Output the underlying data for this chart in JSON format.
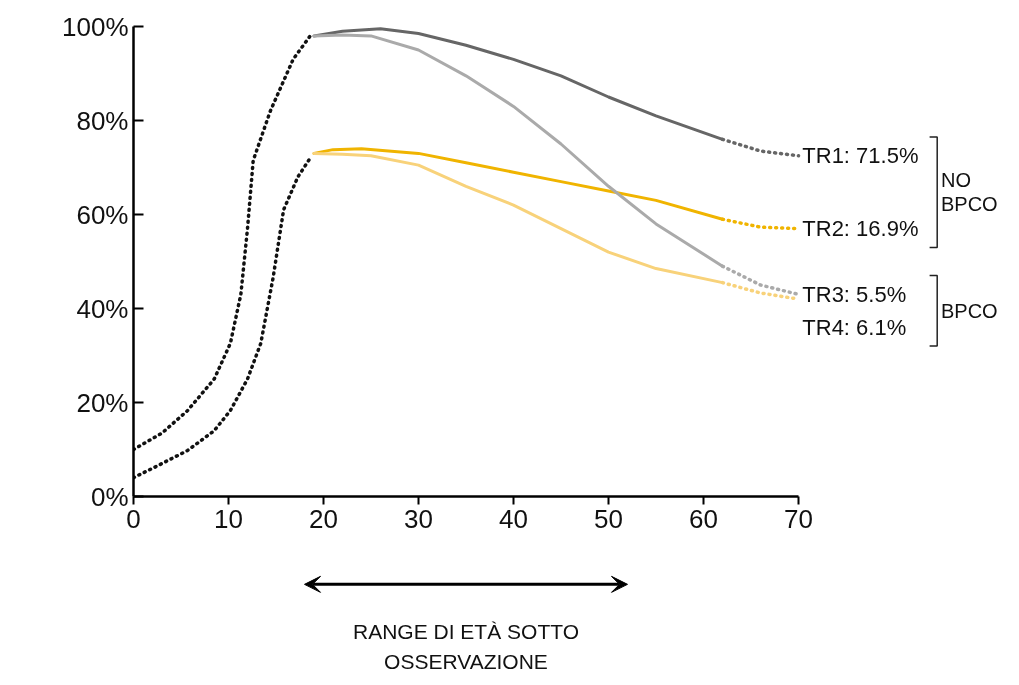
{
  "chart_data": {
    "type": "line",
    "xlim": [
      0,
      70
    ],
    "ylim": [
      0,
      100
    ],
    "xticks": [
      0,
      10,
      20,
      30,
      40,
      50,
      60,
      70
    ],
    "yticks": [
      {
        "value": 0,
        "label": "0%"
      },
      {
        "value": 20,
        "label": "20%"
      },
      {
        "value": 40,
        "label": "40%"
      },
      {
        "value": 60,
        "label": "60%"
      },
      {
        "value": 80,
        "label": "80%"
      },
      {
        "value": 100,
        "label": "100%"
      }
    ],
    "grid": false,
    "series": [
      {
        "color": "#111111",
        "line_style": "dotted",
        "x": [
          0,
          3,
          5.7,
          8.5,
          10.2,
          11.3,
          12,
          12.6,
          14.4,
          16.8,
          18.6
        ],
        "values": [
          10,
          13.5,
          18.3,
          25,
          32.6,
          43,
          57,
          71.5,
          82,
          93,
          98
        ]
      },
      {
        "color": "#111111",
        "line_style": "dotted",
        "x": [
          0,
          2.5,
          5.7,
          8.5,
          10.2,
          12,
          13.4,
          14.7,
          15.8,
          17.3,
          18.6
        ],
        "values": [
          4,
          6.5,
          9.8,
          14,
          18.3,
          25,
          32.6,
          46.6,
          61,
          68,
          72
        ]
      },
      {
        "color": "#666666",
        "line_style": "solid",
        "x": [
          19,
          22,
          26,
          30,
          35,
          40,
          45,
          50,
          55,
          62
        ],
        "values": [
          98,
          99,
          99.5,
          98.5,
          96,
          93,
          89.5,
          85,
          81,
          76
        ]
      },
      {
        "color": "#f0b400",
        "line_style": "solid",
        "x": [
          19,
          21,
          24,
          30,
          35,
          40,
          45,
          50,
          55,
          62
        ],
        "values": [
          73,
          73.8,
          74,
          73,
          71,
          69,
          67,
          65,
          63,
          59
        ]
      },
      {
        "color": "#aaaaaa",
        "line_style": "solid",
        "x": [
          19,
          22,
          25,
          30,
          35,
          40,
          45,
          50,
          55,
          62
        ],
        "values": [
          98,
          98.2,
          98,
          95,
          89.5,
          83,
          75,
          66,
          58,
          49
        ]
      },
      {
        "color": "#f8d27a",
        "line_style": "solid",
        "x": [
          19,
          22,
          25,
          30,
          35,
          40,
          45,
          50,
          55,
          62
        ],
        "values": [
          73,
          72.8,
          72.5,
          70.5,
          66,
          62,
          57,
          52,
          48.5,
          45.5
        ]
      },
      {
        "name": "TR1: 71.5%",
        "color": "#666666",
        "line_style": "dotted",
        "x": [
          62,
          66,
          70
        ],
        "values": [
          76,
          73.5,
          72.5
        ]
      },
      {
        "name": "TR2: 16.9%",
        "color": "#f0b400",
        "line_style": "dotted",
        "x": [
          62,
          66,
          70
        ],
        "values": [
          59,
          57.3,
          57
        ]
      },
      {
        "name": "TR3: 5.5%",
        "color": "#aaaaaa",
        "line_style": "dotted",
        "x": [
          62,
          66,
          70
        ],
        "values": [
          49,
          45,
          43
        ]
      },
      {
        "name": "TR4: 6.1%",
        "color": "#f8d27a",
        "line_style": "dotted",
        "x": [
          62,
          66,
          70
        ],
        "values": [
          45.5,
          43.3,
          42
        ]
      }
    ],
    "annotations": [
      "NO\nBPCO",
      "BPCO",
      "RANGE DI ETÀ SOTTO\nOSSERVAZIONE"
    ]
  }
}
